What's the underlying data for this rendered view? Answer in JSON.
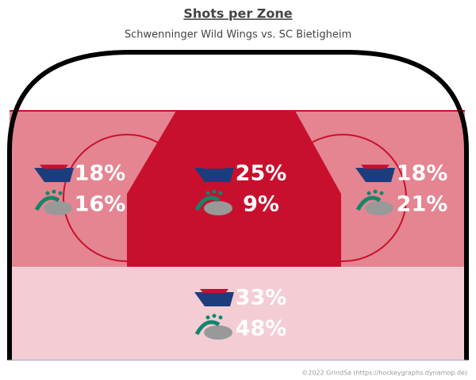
{
  "chart_data": {
    "type": "zones",
    "title": "Shots per Zone",
    "subtitle": "Schwenninger Wild Wings vs. SC Bietigheim",
    "footer": "©2022 GrindSa (https://hockeygraphs.dynamop.de)",
    "series": [
      {
        "color": "#1d3c7c",
        "values": [
          18,
          25,
          18,
          33
        ],
        "value_labels": [
          "18%",
          "25%",
          "18%",
          "33%"
        ]
      },
      {
        "color": "#12866a",
        "values": [
          16,
          9,
          21,
          48
        ],
        "value_labels": [
          "16%",
          "9%",
          "21%",
          "48%"
        ]
      }
    ]
  }
}
